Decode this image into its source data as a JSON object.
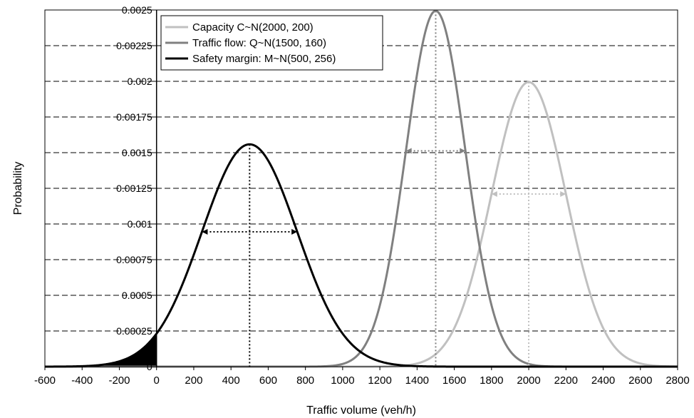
{
  "chart_data": {
    "type": "line",
    "title": "",
    "xlabel": "Traffic volume (veh/h)",
    "ylabel": "Probability",
    "xlim": [
      -600,
      2800
    ],
    "ylim": [
      0,
      0.0025
    ],
    "grid": "horizontal-dashed",
    "x_ticks": [
      "-600",
      "-400",
      "-200",
      "0",
      "200",
      "400",
      "600",
      "800",
      "1000",
      "1200",
      "1400",
      "1600",
      "1800",
      "2000",
      "2200",
      "2400",
      "2600",
      "2800"
    ],
    "y_ticks": [
      "0",
      "0.00025",
      "0.0005",
      "0.00075",
      "0.001",
      "0.00125",
      "0.0015",
      "0.00175",
      "0.002",
      "0.00225",
      "0.0025"
    ],
    "legend_position": "top-left",
    "series": [
      {
        "name": "Capacity C~N(2000, 200)",
        "mean": 2000,
        "sd": 200,
        "color": "#c0c0c0"
      },
      {
        "name": "Traffic flow: Q~N(1500, 160)",
        "mean": 1500,
        "sd": 160,
        "color": "#808080"
      },
      {
        "name": "Safety margin: M~N(500, 256)",
        "mean": 500,
        "sd": 256,
        "color": "#000000"
      }
    ],
    "annotations": {
      "shaded_region": {
        "series": "Safety margin: M~N(500, 256)",
        "x_from": -600,
        "x_to": 0
      }
    }
  }
}
